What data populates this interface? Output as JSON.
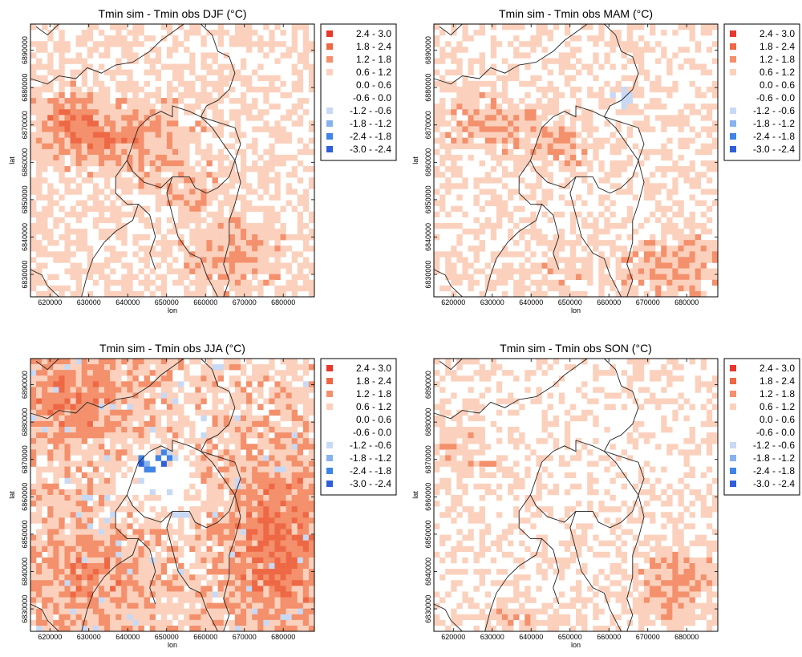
{
  "axes": {
    "xlabel": "lon",
    "ylabel": "lat",
    "xticks": [
      "620000",
      "630000",
      "640000",
      "650000",
      "660000",
      "670000",
      "680000"
    ],
    "yticks": [
      "6830000",
      "6840000",
      "6850000",
      "6860000",
      "6870000",
      "6880000",
      "6890000"
    ]
  },
  "legend": [
    {
      "label": "2.4 -  3.0",
      "color": "#e8372c"
    },
    {
      "label": "1.8 -  2.4",
      "color": "#ee6845"
    },
    {
      "label": "1.2 -  1.8",
      "color": "#f4906c"
    },
    {
      "label": "0.6 -  1.2",
      "color": "#fbd1bd"
    },
    {
      "label": "0.0 -  0.6",
      "color": "#ffffff"
    },
    {
      "label": "-0.6 -  0.0",
      "color": "#ffffff"
    },
    {
      "label": "-1.2 - -0.6",
      "color": "#c7d9f5"
    },
    {
      "label": "-1.8 - -1.2",
      "color": "#87b2ee"
    },
    {
      "label": "-2.4 - -1.8",
      "color": "#3f84e6"
    },
    {
      "label": "-3.0 - -2.4",
      "color": "#2f5fd8"
    }
  ],
  "panels": [
    {
      "title": "Tmin sim - Tmin obs DJF (°C)"
    },
    {
      "title": "Tmin sim - Tmin obs MAM (°C)"
    },
    {
      "title": "Tmin sim - Tmin obs JJA (°C)"
    },
    {
      "title": "Tmin sim - Tmin obs SON (°C)"
    }
  ]
}
